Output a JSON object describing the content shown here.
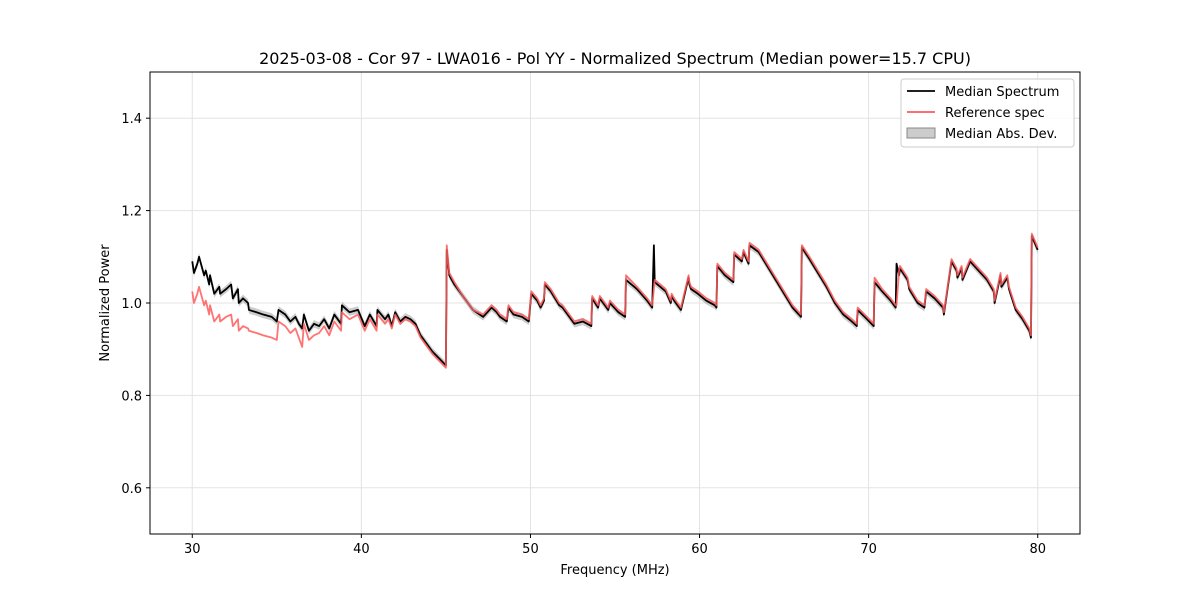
{
  "chart_data": {
    "type": "line",
    "title": "2025-03-08 - Cor 97 - LWA016 - Pol YY - Normalized Spectrum (Median power=15.7 CPU)",
    "xlabel": "Frequency (MHz)",
    "ylabel": "Normalized Power",
    "xlim": [
      27.5,
      82.5
    ],
    "ylim": [
      0.5,
      1.5
    ],
    "xticks": [
      30,
      40,
      50,
      60,
      70,
      80
    ],
    "yticks": [
      0.6,
      0.8,
      1.0,
      1.2,
      1.4
    ],
    "xtick_labels": [
      "30",
      "40",
      "50",
      "60",
      "70",
      "80"
    ],
    "ytick_labels": [
      "0.6",
      "0.8",
      "1.0",
      "1.2",
      "1.4"
    ],
    "grid": true,
    "legend_position": "top-right",
    "colors": {
      "median": "#000000",
      "reference": "#ff5a5a",
      "mad_fill": "#999999",
      "overlap": "#8b0000"
    },
    "legend": [
      {
        "label": "Median Spectrum",
        "kind": "line",
        "color": "#000000"
      },
      {
        "label": "Reference spec",
        "kind": "line",
        "color": "#ff5a5a"
      },
      {
        "label": "Median Abs. Dev.",
        "kind": "patch",
        "color": "#999999"
      }
    ],
    "mad_width": 0.008,
    "series": [
      {
        "name": "Median Spectrum",
        "x": [
          30.0,
          30.1,
          30.3,
          30.4,
          30.7,
          30.8,
          31.0,
          31.05,
          31.3,
          31.6,
          31.65,
          32.0,
          32.3,
          32.4,
          32.7,
          32.75,
          33.0,
          33.3,
          33.35,
          33.8,
          34.2,
          34.7,
          35.0,
          35.1,
          35.5,
          35.8,
          36.1,
          36.3,
          36.5,
          36.6,
          36.9,
          37.2,
          37.5,
          37.8,
          38.1,
          38.4,
          38.6,
          38.8,
          38.85,
          39.3,
          39.8,
          40.2,
          40.5,
          40.9,
          40.95,
          41.4,
          41.6,
          41.8,
          42.0,
          42.3,
          42.6,
          42.9,
          43.2,
          43.5,
          43.8,
          44.2,
          44.6,
          45.0,
          45.05,
          45.2,
          45.5,
          46.0,
          46.6,
          47.2,
          47.7,
          48.0,
          48.2,
          48.6,
          48.7,
          49.0,
          49.5,
          49.9,
          50.05,
          50.4,
          50.6,
          50.8,
          50.85,
          51.2,
          51.7,
          51.9,
          52.2,
          52.6,
          53.1,
          53.6,
          53.65,
          54.0,
          54.1,
          54.6,
          54.7,
          55.2,
          55.6,
          55.65,
          56.3,
          56.9,
          57.2,
          57.3,
          57.35,
          58.0,
          58.3,
          58.35,
          58.5,
          58.9,
          59.35,
          59.4,
          59.5,
          59.9,
          60.4,
          60.9,
          61.0,
          61.05,
          61.5,
          62.0,
          62.05,
          62.5,
          62.6,
          62.9,
          62.95,
          63.5,
          64.0,
          64.5,
          65.0,
          65.5,
          66.0,
          66.05,
          66.5,
          67.0,
          67.5,
          68.0,
          68.5,
          69.0,
          69.3,
          69.35,
          69.9,
          70.3,
          70.35,
          70.8,
          71.3,
          71.6,
          71.65,
          71.8,
          71.85,
          72.3,
          72.4,
          72.9,
          73.3,
          73.4,
          73.9,
          74.4,
          74.45,
          74.9,
          75.2,
          75.25,
          75.5,
          75.55,
          76.0,
          76.5,
          77.0,
          77.4,
          77.45,
          77.8,
          77.85,
          78.2,
          78.3,
          78.7,
          79.1,
          79.5,
          79.6,
          79.65,
          80.0
        ],
        "y": [
          1.09,
          1.065,
          1.085,
          1.1,
          1.06,
          1.07,
          1.04,
          1.06,
          1.02,
          1.035,
          1.02,
          1.03,
          1.04,
          1.01,
          1.03,
          1.0,
          1.01,
          1.0,
          0.985,
          0.98,
          0.975,
          0.97,
          0.96,
          0.985,
          0.975,
          0.96,
          0.97,
          0.955,
          0.945,
          0.975,
          0.94,
          0.955,
          0.95,
          0.965,
          0.945,
          0.975,
          0.965,
          0.955,
          0.995,
          0.98,
          0.985,
          0.95,
          0.975,
          0.95,
          0.985,
          0.965,
          0.975,
          0.95,
          0.98,
          0.96,
          0.97,
          0.965,
          0.955,
          0.93,
          0.915,
          0.895,
          0.88,
          0.865,
          1.115,
          1.06,
          1.04,
          1.015,
          0.985,
          0.97,
          0.99,
          0.98,
          0.97,
          0.96,
          0.99,
          0.975,
          0.97,
          0.96,
          1.02,
          1.005,
          0.99,
          1.005,
          1.04,
          1.025,
          0.995,
          0.99,
          0.975,
          0.955,
          0.96,
          0.95,
          1.01,
          0.99,
          1.01,
          0.985,
          1.0,
          0.98,
          0.97,
          1.05,
          1.03,
          1.005,
          0.99,
          1.125,
          1.045,
          1.025,
          1.0,
          1.015,
          1.005,
          0.985,
          1.055,
          1.04,
          1.03,
          1.02,
          1.005,
          0.995,
          0.99,
          1.08,
          1.06,
          1.045,
          1.105,
          1.09,
          1.11,
          1.085,
          1.125,
          1.11,
          1.08,
          1.05,
          1.02,
          0.99,
          0.97,
          1.12,
          1.095,
          1.065,
          1.035,
          1.0,
          0.975,
          0.96,
          0.95,
          0.985,
          0.965,
          0.95,
          1.045,
          1.025,
          1.005,
          0.99,
          1.085,
          1.06,
          1.075,
          1.05,
          1.03,
          1.0,
          0.99,
          1.025,
          1.01,
          0.99,
          0.975,
          1.09,
          1.07,
          1.055,
          1.075,
          1.05,
          1.09,
          1.07,
          1.05,
          1.025,
          1.0,
          1.06,
          1.035,
          1.055,
          1.03,
          0.985,
          0.965,
          0.94,
          0.925,
          1.145,
          1.115
        ]
      },
      {
        "name": "Reference spec",
        "x": [
          30.0,
          30.1,
          30.3,
          30.4,
          30.7,
          30.8,
          31.0,
          31.05,
          31.3,
          31.6,
          31.65,
          32.0,
          32.3,
          32.4,
          32.7,
          32.75,
          33.0,
          33.3,
          33.35,
          33.8,
          34.2,
          34.7,
          35.0,
          35.1,
          35.5,
          35.8,
          36.1,
          36.3,
          36.5,
          36.6,
          36.9,
          37.2,
          37.5,
          37.8,
          38.1,
          38.4,
          38.6,
          38.8,
          38.85,
          39.3,
          39.8,
          40.2,
          40.5,
          40.9,
          40.95,
          41.4,
          41.6,
          41.8,
          42.0,
          42.3,
          42.6,
          42.9,
          43.2,
          43.5,
          43.8,
          44.2,
          44.6,
          45.0,
          45.05,
          45.2,
          45.5,
          46.0,
          46.6,
          47.2,
          47.7,
          48.0,
          48.2,
          48.6,
          48.7,
          49.0,
          49.5,
          49.9,
          50.05,
          50.4,
          50.6,
          50.8,
          50.85,
          51.2,
          51.7,
          51.9,
          52.2,
          52.6,
          53.1,
          53.6,
          53.65,
          54.0,
          54.1,
          54.6,
          54.7,
          55.2,
          55.6,
          55.65,
          56.3,
          56.9,
          57.2,
          57.3,
          57.35,
          58.0,
          58.3,
          58.35,
          58.5,
          58.9,
          59.35,
          59.4,
          59.5,
          59.9,
          60.4,
          60.9,
          61.0,
          61.05,
          61.5,
          62.0,
          62.05,
          62.5,
          62.6,
          62.9,
          62.95,
          63.5,
          64.0,
          64.5,
          65.0,
          65.5,
          66.0,
          66.05,
          66.5,
          67.0,
          67.5,
          68.0,
          68.5,
          69.0,
          69.3,
          69.35,
          69.9,
          70.3,
          70.35,
          70.8,
          71.3,
          71.6,
          71.65,
          71.8,
          71.85,
          72.3,
          72.4,
          72.9,
          73.3,
          73.4,
          73.9,
          74.4,
          74.45,
          74.9,
          75.2,
          75.25,
          75.5,
          75.55,
          76.0,
          76.5,
          77.0,
          77.4,
          77.45,
          77.8,
          77.85,
          78.2,
          78.3,
          78.7,
          79.1,
          79.5,
          79.6,
          79.65,
          80.0
        ],
        "y": [
          1.025,
          1.0,
          1.02,
          1.035,
          0.995,
          1.005,
          0.975,
          0.995,
          0.96,
          0.975,
          0.96,
          0.97,
          0.975,
          0.95,
          0.965,
          0.94,
          0.95,
          0.945,
          0.94,
          0.935,
          0.93,
          0.925,
          0.92,
          0.96,
          0.95,
          0.935,
          0.945,
          0.925,
          0.905,
          0.955,
          0.92,
          0.93,
          0.935,
          0.95,
          0.93,
          0.96,
          0.95,
          0.94,
          0.98,
          0.965,
          0.975,
          0.94,
          0.965,
          0.94,
          0.975,
          0.955,
          0.965,
          0.945,
          0.975,
          0.955,
          0.965,
          0.96,
          0.95,
          0.925,
          0.91,
          0.89,
          0.875,
          0.86,
          1.125,
          1.065,
          1.045,
          1.015,
          0.985,
          0.975,
          0.995,
          0.985,
          0.975,
          0.965,
          0.995,
          0.98,
          0.975,
          0.965,
          1.025,
          1.01,
          0.995,
          1.01,
          1.045,
          1.03,
          1.0,
          0.995,
          0.98,
          0.96,
          0.965,
          0.955,
          1.015,
          0.995,
          1.015,
          0.99,
          1.005,
          0.985,
          0.975,
          1.06,
          1.035,
          1.01,
          0.995,
          1.03,
          1.05,
          1.03,
          1.005,
          1.02,
          1.01,
          0.99,
          1.06,
          1.045,
          1.035,
          1.025,
          1.01,
          1.0,
          0.995,
          1.085,
          1.065,
          1.05,
          1.11,
          1.095,
          1.115,
          1.09,
          1.13,
          1.115,
          1.085,
          1.055,
          1.025,
          0.995,
          0.975,
          1.125,
          1.1,
          1.07,
          1.04,
          1.005,
          0.98,
          0.965,
          0.955,
          0.99,
          0.97,
          0.955,
          1.055,
          1.03,
          1.01,
          0.995,
          0.995,
          1.07,
          1.08,
          1.055,
          1.035,
          1.005,
          0.995,
          1.03,
          1.015,
          0.995,
          0.98,
          1.095,
          1.075,
          1.06,
          1.08,
          1.055,
          1.095,
          1.075,
          1.055,
          1.03,
          1.005,
          1.065,
          1.04,
          1.06,
          1.035,
          0.99,
          0.97,
          0.945,
          0.93,
          1.15,
          1.12
        ]
      }
    ]
  }
}
